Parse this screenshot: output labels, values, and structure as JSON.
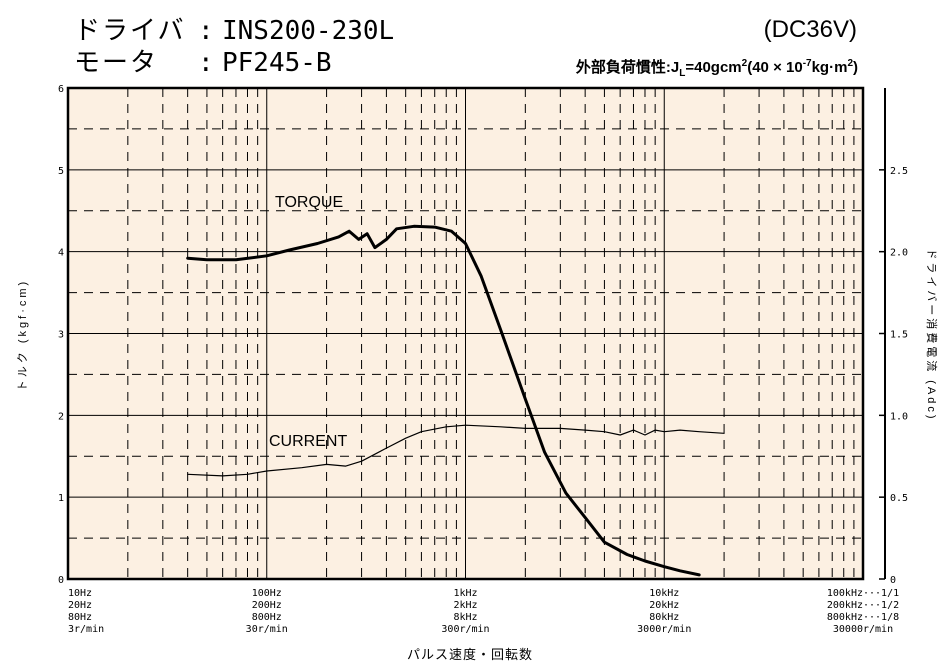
{
  "header": {
    "driver_label": "ドライバ",
    "driver_sep": ":",
    "driver_value": "INS200-230L",
    "motor_label": "モータ",
    "motor_sep": ":",
    "motor_value": "PF245-B",
    "supply": "(DC36V)",
    "inertia_main": "外部負荷慣性:J",
    "inertia_sub": "L",
    "inertia_value": "=40gcm",
    "inertia_exp1": "2",
    "inertia_paren": "(40 × 10",
    "inertia_exp2": "-7",
    "inertia_unit": "kg·m",
    "inertia_exp3": "2",
    "inertia_close": ")"
  },
  "colors": {
    "plot_background": "#fcf0e2",
    "curve": "#000000"
  },
  "chart_data": {
    "type": "line",
    "x_scale": "log",
    "xlim": [
      10,
      100000
    ],
    "ylim_left": [
      0,
      6
    ],
    "ylim_right": [
      0,
      3
    ],
    "grid": true,
    "xlabel": "パルス速度・回転数",
    "ylabel_left": "トルク (kgf·cm)",
    "ylabel_right": "ドライバー消費電流 (Adc)",
    "y_ticks_left": [
      "0",
      "1",
      "2",
      "3",
      "4",
      "5",
      "6"
    ],
    "y_ticks_right": [
      "0",
      "0.5",
      "1.0",
      "1.5",
      "2.0",
      "2.5"
    ],
    "x_tick_groups": [
      [
        "10Hz",
        "20Hz",
        "80Hz",
        "3r/min"
      ],
      [
        "100Hz",
        "200Hz",
        "800Hz",
        "30r/min"
      ],
      [
        "1kHz",
        "2kHz",
        "8kHz",
        "300r/min"
      ],
      [
        "10kHz",
        "20kHz",
        "80kHz",
        "3000r/min"
      ],
      [
        "100kHz···1/1",
        "200kHz···1/2",
        "800kHz···1/8",
        "30000r/min"
      ]
    ],
    "series": [
      {
        "name": "TORQUE",
        "axis": "left",
        "x": [
          40,
          50,
          70,
          100,
          130,
          180,
          230,
          260,
          290,
          320,
          350,
          400,
          450,
          550,
          700,
          850,
          1000,
          1200,
          1500,
          2000,
          2500,
          3200,
          4000,
          5000,
          6500,
          8000,
          10000,
          12000,
          15000
        ],
        "y": [
          3.92,
          3.9,
          3.9,
          3.95,
          4.02,
          4.1,
          4.18,
          4.25,
          4.15,
          4.22,
          4.05,
          4.15,
          4.28,
          4.31,
          4.3,
          4.25,
          4.1,
          3.7,
          3.05,
          2.2,
          1.55,
          1.05,
          0.75,
          0.45,
          0.3,
          0.22,
          0.15,
          0.1,
          0.05
        ]
      },
      {
        "name": "CURRENT",
        "axis": "right",
        "x": [
          40,
          60,
          80,
          100,
          150,
          200,
          250,
          300,
          400,
          500,
          600,
          800,
          1000,
          1500,
          2000,
          3000,
          4000,
          5000,
          6000,
          7000,
          8000,
          9000,
          10000,
          12000,
          15000,
          20000
        ],
        "y": [
          0.64,
          0.63,
          0.64,
          0.66,
          0.68,
          0.7,
          0.69,
          0.72,
          0.8,
          0.86,
          0.9,
          0.93,
          0.94,
          0.93,
          0.92,
          0.92,
          0.91,
          0.9,
          0.88,
          0.91,
          0.88,
          0.91,
          0.9,
          0.91,
          0.9,
          0.89
        ]
      }
    ]
  }
}
